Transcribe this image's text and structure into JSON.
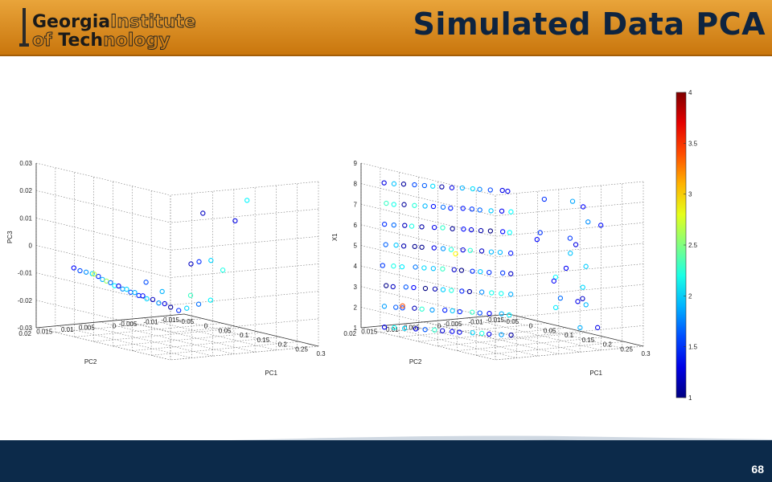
{
  "header": {
    "logo_line1_bold": "Georgia",
    "logo_line1_light": "Institute",
    "logo_line2_light_a": "of ",
    "logo_line2_bold": "Tech",
    "logo_line2_light_b": "nology",
    "title": "Simulated Data PCA",
    "colors": {
      "bar": "#d98a1f",
      "title": "#0e2440"
    }
  },
  "footer": {
    "page_number": "68",
    "color": "#0c2a4a"
  },
  "chart_data": [
    {
      "type": "scatter",
      "projection": "3d",
      "xlabel": "PC1",
      "ylabel": "PC2",
      "zlabel": "PC3",
      "xticks": [
        "-0.05",
        "0",
        "0.05",
        "0.1",
        "0.15",
        "0.2",
        "0.25",
        "0.3"
      ],
      "yticks": [
        "-0.015",
        "-0.01",
        "-0.005",
        "0",
        "0.005",
        "0.01",
        "0.015",
        "0.02"
      ],
      "zticks": [
        "-0.03",
        "-0.02",
        "-0.01",
        "0",
        "0.01",
        "0.02",
        "0.03"
      ],
      "xlim": [
        -0.05,
        0.3
      ],
      "ylim": [
        -0.015,
        0.02
      ],
      "zlim": [
        -0.03,
        0.03
      ],
      "grid": true,
      "marker": "open-circle",
      "colormap": "jet",
      "points": [
        {
          "x": -0.04,
          "y": 0.012,
          "z": -0.009,
          "c": 1.4
        },
        {
          "x": -0.035,
          "y": 0.011,
          "z": -0.01,
          "c": 1.6
        },
        {
          "x": -0.03,
          "y": 0.01,
          "z": -0.0105,
          "c": 1.8
        },
        {
          "x": -0.025,
          "y": 0.009,
          "z": -0.011,
          "c": 2.0
        },
        {
          "x": -0.02,
          "y": 0.008,
          "z": -0.012,
          "c": 1.5
        },
        {
          "x": -0.015,
          "y": 0.0075,
          "z": -0.013,
          "c": 1.9
        },
        {
          "x": -0.01,
          "y": 0.007,
          "z": -0.0135,
          "c": 2.6
        },
        {
          "x": -0.005,
          "y": 0.0065,
          "z": -0.014,
          "c": 1.7
        },
        {
          "x": 0.0,
          "y": 0.006,
          "z": -0.015,
          "c": 2.1
        },
        {
          "x": 0.005,
          "y": 0.0055,
          "z": -0.015,
          "c": 1.3
        },
        {
          "x": 0.01,
          "y": 0.005,
          "z": -0.016,
          "c": 1.8
        },
        {
          "x": 0.015,
          "y": 0.0045,
          "z": -0.016,
          "c": 2.0
        },
        {
          "x": 0.02,
          "y": 0.004,
          "z": -0.017,
          "c": 1.6
        },
        {
          "x": 0.025,
          "y": 0.0035,
          "z": -0.017,
          "c": 1.9
        },
        {
          "x": 0.03,
          "y": 0.003,
          "z": -0.018,
          "c": 1.5
        },
        {
          "x": 0.035,
          "y": 0.0025,
          "z": -0.018,
          "c": 1.4
        },
        {
          "x": 0.04,
          "y": 0.002,
          "z": -0.019,
          "c": 2.0
        },
        {
          "x": 0.05,
          "y": 0.0015,
          "z": -0.019,
          "c": 1.2
        },
        {
          "x": 0.06,
          "y": 0.001,
          "z": -0.02,
          "c": 1.8
        },
        {
          "x": 0.07,
          "y": 0.0005,
          "z": -0.02,
          "c": 1.3
        },
        {
          "x": 0.08,
          "y": 0.0,
          "z": -0.021,
          "c": 1.1
        },
        {
          "x": 0.09,
          "y": -0.001,
          "z": -0.022,
          "c": 1.5
        },
        {
          "x": 0.1,
          "y": -0.002,
          "z": -0.021,
          "c": 2.0
        },
        {
          "x": 0.12,
          "y": -0.003,
          "z": -0.019,
          "c": 1.7
        },
        {
          "x": 0.14,
          "y": -0.004,
          "z": -0.017,
          "c": 2.1
        },
        {
          "x": 0.1,
          "y": -0.003,
          "z": -0.005,
          "c": 1.2
        },
        {
          "x": 0.11,
          "y": -0.004,
          "z": -0.004,
          "c": 1.5
        },
        {
          "x": 0.13,
          "y": -0.005,
          "z": -0.003,
          "c": 2.0
        },
        {
          "x": 0.15,
          "y": -0.006,
          "z": -0.006,
          "c": 2.2
        },
        {
          "x": 0.12,
          "y": -0.004,
          "z": 0.014,
          "c": 1.2
        },
        {
          "x": 0.16,
          "y": -0.008,
          "z": 0.012,
          "c": 1.3
        },
        {
          "x": 0.18,
          "y": -0.009,
          "z": 0.02,
          "c": 2.1
        },
        {
          "x": 0.06,
          "y": 0.004,
          "z": -0.012,
          "c": 1.6
        },
        {
          "x": 0.08,
          "y": 0.002,
          "z": -0.015,
          "c": 1.9
        },
        {
          "x": 0.11,
          "y": -0.002,
          "z": -0.016,
          "c": 2.3
        },
        {
          "x": -0.02,
          "y": 0.009,
          "z": -0.011,
          "c": 2.7
        }
      ]
    },
    {
      "type": "scatter",
      "projection": "3d",
      "xlabel": "PC1",
      "ylabel": "PC2",
      "zlabel": "X1",
      "xticks": [
        "-0.05",
        "0",
        "0.05",
        "0.1",
        "0.15",
        "0.2",
        "0.25",
        "0.3"
      ],
      "yticks": [
        "-0.015",
        "-0.01",
        "-0.005",
        "0",
        "0.005",
        "0.01",
        "0.015",
        "0.02"
      ],
      "zticks": [
        "1",
        "2",
        "3",
        "4",
        "5",
        "6",
        "7",
        "8",
        "9"
      ],
      "xlim": [
        -0.05,
        0.3
      ],
      "ylim": [
        -0.015,
        0.02
      ],
      "zlim": [
        1,
        9
      ],
      "grid": true,
      "marker": "open-circle",
      "colormap": "jet",
      "layers": [
        1,
        2,
        3,
        4,
        5,
        6,
        7,
        8
      ],
      "points": []
    }
  ],
  "colorbar": {
    "ticks": [
      "1",
      "1.5",
      "2",
      "2.5",
      "3",
      "3.5",
      "4"
    ],
    "range": [
      1,
      4
    ],
    "colormap": "jet"
  }
}
